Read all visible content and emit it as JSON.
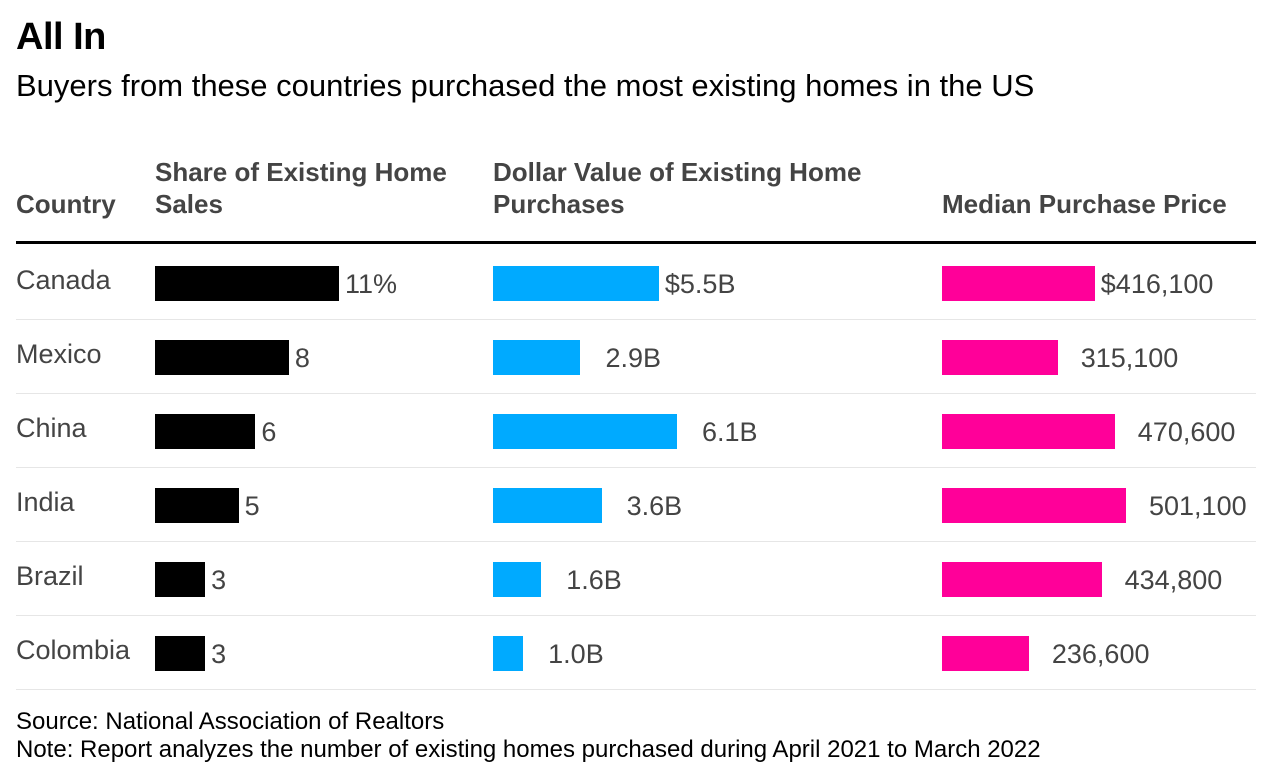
{
  "title": "All In",
  "subtitle": "Buyers from these countries purchased the most existing homes in the US",
  "headers": {
    "country": "Country",
    "share": "Share of Existing Home Sales",
    "dollar": "Dollar Value of Existing Home Purchases",
    "median": "Median Purchase Price"
  },
  "footer": {
    "source": "Source: National Association of Realtors",
    "note": "Note: Report analyzes the number of existing homes purchased during April 2021 to March 2022"
  },
  "colors": {
    "share": "#000000",
    "dollar": "#00aaff",
    "median": "#ff0099"
  },
  "chart_data": {
    "type": "table",
    "title": "All In",
    "columns": [
      "Country",
      "Share of Existing Home Sales",
      "Dollar Value of Existing Home Purchases",
      "Median Purchase Price"
    ],
    "rows": [
      {
        "country": "Canada",
        "share": 11,
        "share_label": "11%",
        "dollar": 5.5,
        "dollar_label": "$5.5B",
        "median": 416100,
        "median_label": "$416,100"
      },
      {
        "country": "Mexico",
        "share": 8,
        "share_label": "8",
        "dollar": 2.9,
        "dollar_label": "2.9B",
        "median": 315100,
        "median_label": "315,100"
      },
      {
        "country": "China",
        "share": 6,
        "share_label": "6",
        "dollar": 6.1,
        "dollar_label": "6.1B",
        "median": 470600,
        "median_label": "470,600"
      },
      {
        "country": "India",
        "share": 5,
        "share_label": "5",
        "dollar": 3.6,
        "dollar_label": "3.6B",
        "median": 501100,
        "median_label": "501,100"
      },
      {
        "country": "Brazil",
        "share": 3,
        "share_label": "3",
        "dollar": 1.6,
        "dollar_label": "1.6B",
        "median": 434800,
        "median_label": "434,800"
      },
      {
        "country": "Colombia",
        "share": 3,
        "share_label": "3",
        "dollar": 1.0,
        "dollar_label": "1.0B",
        "median": 236600,
        "median_label": "236,600"
      }
    ]
  }
}
